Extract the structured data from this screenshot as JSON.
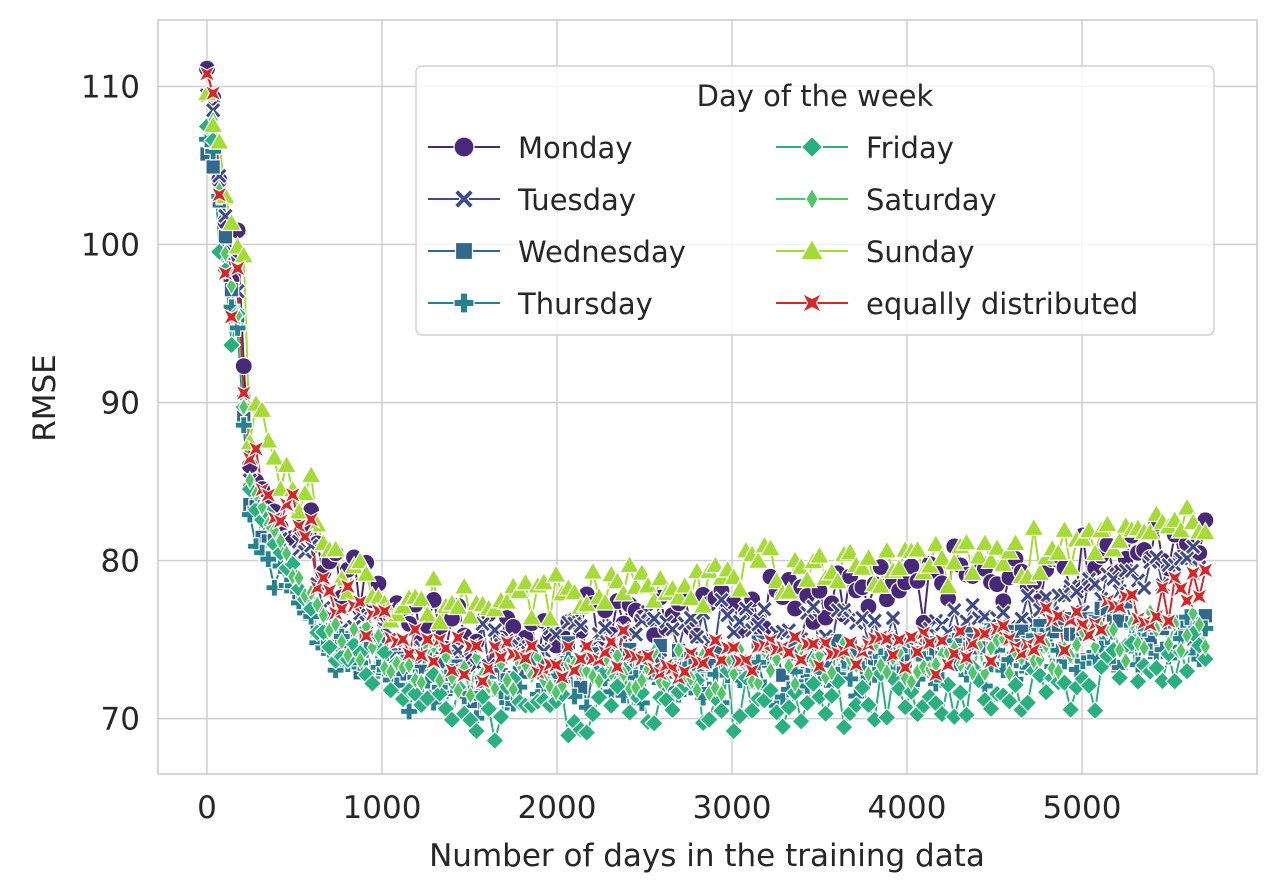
{
  "chart_data": {
    "type": "line",
    "title": "",
    "xlabel": "Number of days in the training data",
    "ylabel": "RMSE",
    "xlim": [
      -280,
      6000
    ],
    "ylim": [
      66.5,
      114.2
    ],
    "xticks": [
      0,
      1000,
      2000,
      3000,
      4000,
      5000
    ],
    "yticks": [
      70,
      80,
      90,
      100,
      110
    ],
    "xtick_labels": [
      "0",
      "1000",
      "2000",
      "3000",
      "4000",
      "5000"
    ],
    "ytick_labels": [
      "70",
      "80",
      "90",
      "100",
      "110"
    ],
    "grid": true,
    "legend": {
      "title": "Day of the week",
      "placement": "top-right",
      "columns": 2
    },
    "x_step": 35,
    "x_start": 0,
    "x_end": 5705,
    "series": [
      {
        "name": "Monday",
        "color": "#482878",
        "marker": "circle",
        "early": [
          [
            0,
            111.5
          ],
          [
            35,
            109
          ],
          [
            70,
            104
          ],
          [
            105,
            101.5
          ],
          [
            140,
            98
          ],
          [
            175,
            100.5
          ],
          [
            210,
            92
          ],
          [
            245,
            86
          ],
          [
            280,
            85
          ],
          [
            315,
            84.5
          ],
          [
            350,
            84
          ],
          [
            385,
            83
          ],
          [
            420,
            82
          ],
          [
            455,
            81.5
          ],
          [
            490,
            81
          ],
          [
            525,
            83
          ],
          [
            560,
            82
          ],
          [
            595,
            83.5
          ],
          [
            630,
            80.5
          ],
          [
            665,
            79
          ],
          [
            700,
            79.5
          ]
        ],
        "plateau": [
          [
            700,
            79.5
          ],
          [
            1200,
            76.5
          ],
          [
            1500,
            75
          ],
          [
            2000,
            75.5
          ],
          [
            2500,
            77
          ],
          [
            3000,
            77
          ],
          [
            3500,
            77.5
          ],
          [
            4000,
            78
          ],
          [
            4500,
            79
          ],
          [
            5000,
            80
          ],
          [
            5705,
            81.5
          ]
        ],
        "amp": 1.6
      },
      {
        "name": "Tuesday",
        "color": "#3e4a89",
        "marker": "x",
        "early": [
          [
            0,
            110
          ],
          [
            35,
            109
          ],
          [
            70,
            104.5
          ],
          [
            105,
            102
          ],
          [
            140,
            99
          ],
          [
            175,
            97
          ],
          [
            210,
            90
          ],
          [
            245,
            85
          ],
          [
            280,
            84
          ],
          [
            315,
            83
          ],
          [
            350,
            82.5
          ],
          [
            385,
            81.5
          ],
          [
            420,
            81
          ],
          [
            455,
            80.5
          ],
          [
            490,
            80
          ],
          [
            525,
            81
          ],
          [
            560,
            80
          ],
          [
            595,
            81
          ],
          [
            630,
            78
          ],
          [
            665,
            77
          ],
          [
            700,
            76.5
          ]
        ],
        "plateau": [
          [
            700,
            76.5
          ],
          [
            1200,
            74
          ],
          [
            1500,
            74
          ],
          [
            2000,
            74.5
          ],
          [
            2500,
            75.5
          ],
          [
            3000,
            75.5
          ],
          [
            3500,
            75.5
          ],
          [
            4000,
            75.5
          ],
          [
            4500,
            76.5
          ],
          [
            5000,
            78
          ],
          [
            5705,
            80
          ]
        ],
        "amp": 1.4
      },
      {
        "name": "Wednesday",
        "color": "#31688e",
        "marker": "square",
        "early": [
          [
            0,
            106
          ],
          [
            35,
            105
          ],
          [
            70,
            103
          ],
          [
            105,
            100
          ],
          [
            140,
            97
          ],
          [
            175,
            95
          ],
          [
            210,
            89
          ],
          [
            245,
            84
          ],
          [
            280,
            83
          ],
          [
            315,
            82
          ],
          [
            350,
            81.5
          ],
          [
            385,
            81
          ],
          [
            420,
            80.5
          ],
          [
            455,
            80
          ],
          [
            490,
            79.5
          ],
          [
            525,
            78
          ],
          [
            560,
            77.5
          ],
          [
            595,
            77
          ],
          [
            630,
            76
          ],
          [
            665,
            75.5
          ],
          [
            700,
            75
          ]
        ],
        "plateau": [
          [
            700,
            75
          ],
          [
            1200,
            73
          ],
          [
            1500,
            72.5
          ],
          [
            2000,
            73
          ],
          [
            2500,
            73.5
          ],
          [
            3000,
            73.5
          ],
          [
            3500,
            73.5
          ],
          [
            4000,
            74
          ],
          [
            4500,
            74.5
          ],
          [
            5000,
            75.5
          ],
          [
            5705,
            76
          ]
        ],
        "amp": 1.2
      },
      {
        "name": "Thursday",
        "color": "#26828e",
        "marker": "plus",
        "early": [
          [
            0,
            107
          ],
          [
            35,
            105.5
          ],
          [
            70,
            103
          ],
          [
            105,
            99
          ],
          [
            140,
            96.5
          ],
          [
            175,
            95
          ],
          [
            210,
            88
          ],
          [
            245,
            83
          ],
          [
            280,
            81.5
          ],
          [
            315,
            80.5
          ],
          [
            350,
            80
          ],
          [
            385,
            78
          ],
          [
            420,
            79.5
          ],
          [
            455,
            79
          ],
          [
            490,
            78.5
          ],
          [
            525,
            77.5
          ],
          [
            560,
            77
          ],
          [
            595,
            76.5
          ],
          [
            630,
            75
          ],
          [
            665,
            74
          ],
          [
            700,
            74
          ]
        ],
        "plateau": [
          [
            700,
            74
          ],
          [
            1200,
            72
          ],
          [
            1500,
            71.5
          ],
          [
            2000,
            72
          ],
          [
            2500,
            72.5
          ],
          [
            3000,
            72.5
          ],
          [
            3500,
            72.5
          ],
          [
            4000,
            73
          ],
          [
            4500,
            73.5
          ],
          [
            5000,
            74
          ],
          [
            5705,
            75
          ]
        ],
        "amp": 1.3
      },
      {
        "name": "Friday",
        "color": "#2ab07f",
        "marker": "diamond",
        "early": [
          [
            0,
            108
          ],
          [
            35,
            107
          ],
          [
            70,
            100
          ],
          [
            105,
            98
          ],
          [
            140,
            94
          ],
          [
            175,
            96
          ],
          [
            210,
            89.5
          ],
          [
            245,
            84
          ],
          [
            280,
            83
          ],
          [
            315,
            82
          ],
          [
            350,
            82.5
          ],
          [
            385,
            81
          ],
          [
            420,
            80
          ],
          [
            455,
            79.5
          ],
          [
            490,
            80
          ],
          [
            525,
            78
          ],
          [
            560,
            77.5
          ],
          [
            595,
            77
          ],
          [
            630,
            76
          ],
          [
            665,
            75
          ],
          [
            700,
            74
          ]
        ],
        "plateau": [
          [
            700,
            74
          ],
          [
            1200,
            71
          ],
          [
            1500,
            70.5
          ],
          [
            2000,
            71
          ],
          [
            2500,
            71
          ],
          [
            3000,
            71
          ],
          [
            3500,
            71
          ],
          [
            4000,
            71.5
          ],
          [
            4500,
            71.5
          ],
          [
            5000,
            72.5
          ],
          [
            5705,
            73.5
          ]
        ],
        "amp": 1.6
      },
      {
        "name": "Saturday",
        "color": "#52c569",
        "marker": "thin_diamond",
        "early": [
          [
            0,
            109
          ],
          [
            35,
            107.5
          ],
          [
            70,
            104
          ],
          [
            105,
            100
          ],
          [
            140,
            97
          ],
          [
            175,
            96
          ],
          [
            210,
            90
          ],
          [
            245,
            85.5
          ],
          [
            280,
            84
          ],
          [
            315,
            83.5
          ],
          [
            350,
            82
          ],
          [
            385,
            81.5
          ],
          [
            420,
            81
          ],
          [
            455,
            80
          ],
          [
            490,
            79
          ],
          [
            525,
            78.5
          ],
          [
            560,
            78
          ],
          [
            595,
            77.5
          ],
          [
            630,
            77
          ],
          [
            665,
            76
          ],
          [
            700,
            75.5
          ]
        ],
        "plateau": [
          [
            700,
            75.5
          ],
          [
            1200,
            73
          ],
          [
            1500,
            72.5
          ],
          [
            2000,
            72.5
          ],
          [
            2500,
            73
          ],
          [
            3000,
            73
          ],
          [
            3500,
            73.5
          ],
          [
            4000,
            73.5
          ],
          [
            4500,
            74
          ],
          [
            5000,
            74.5
          ],
          [
            5705,
            76
          ]
        ],
        "amp": 1.2
      },
      {
        "name": "Sunday",
        "color": "#a5db36",
        "marker": "triangle",
        "early": [
          [
            0,
            110
          ],
          [
            35,
            108
          ],
          [
            70,
            106
          ],
          [
            105,
            103
          ],
          [
            140,
            101
          ],
          [
            175,
            100
          ],
          [
            210,
            99
          ],
          [
            245,
            88
          ],
          [
            280,
            89.5
          ],
          [
            315,
            89
          ],
          [
            350,
            88
          ],
          [
            385,
            86
          ],
          [
            420,
            85
          ],
          [
            455,
            86
          ],
          [
            490,
            84
          ],
          [
            525,
            83
          ],
          [
            560,
            84
          ],
          [
            595,
            85
          ],
          [
            630,
            82
          ],
          [
            665,
            80.5
          ],
          [
            700,
            81
          ]
        ],
        "plateau": [
          [
            700,
            80.5
          ],
          [
            1000,
            77.5
          ],
          [
            1500,
            77.5
          ],
          [
            2000,
            78
          ],
          [
            2500,
            78.5
          ],
          [
            3000,
            79
          ],
          [
            3500,
            79.5
          ],
          [
            4000,
            80
          ],
          [
            4500,
            80
          ],
          [
            5000,
            81
          ],
          [
            5705,
            82.5
          ]
        ],
        "amp": 1.2
      },
      {
        "name": "equally distributed",
        "color": "#d62728",
        "marker": "star",
        "early": [
          [
            0,
            111
          ],
          [
            35,
            109
          ],
          [
            70,
            103.5
          ],
          [
            105,
            98.5
          ],
          [
            140,
            96
          ],
          [
            175,
            99
          ],
          [
            210,
            90.5
          ],
          [
            245,
            86
          ],
          [
            280,
            87
          ],
          [
            315,
            85
          ],
          [
            350,
            84
          ],
          [
            385,
            83
          ],
          [
            420,
            82.5
          ],
          [
            455,
            84
          ],
          [
            490,
            84.5
          ],
          [
            525,
            82
          ],
          [
            560,
            81.5
          ],
          [
            595,
            82
          ],
          [
            630,
            78
          ],
          [
            665,
            78.5
          ],
          [
            700,
            77.5
          ]
        ],
        "plateau": [
          [
            700,
            77.5
          ],
          [
            1000,
            75.5
          ],
          [
            1500,
            73.5
          ],
          [
            2000,
            73.5
          ],
          [
            2500,
            74
          ],
          [
            3000,
            74
          ],
          [
            3500,
            74.5
          ],
          [
            4000,
            74.5
          ],
          [
            4500,
            74.5
          ],
          [
            5000,
            76
          ],
          [
            5705,
            78.5
          ]
        ],
        "amp": 1.3
      }
    ]
  }
}
